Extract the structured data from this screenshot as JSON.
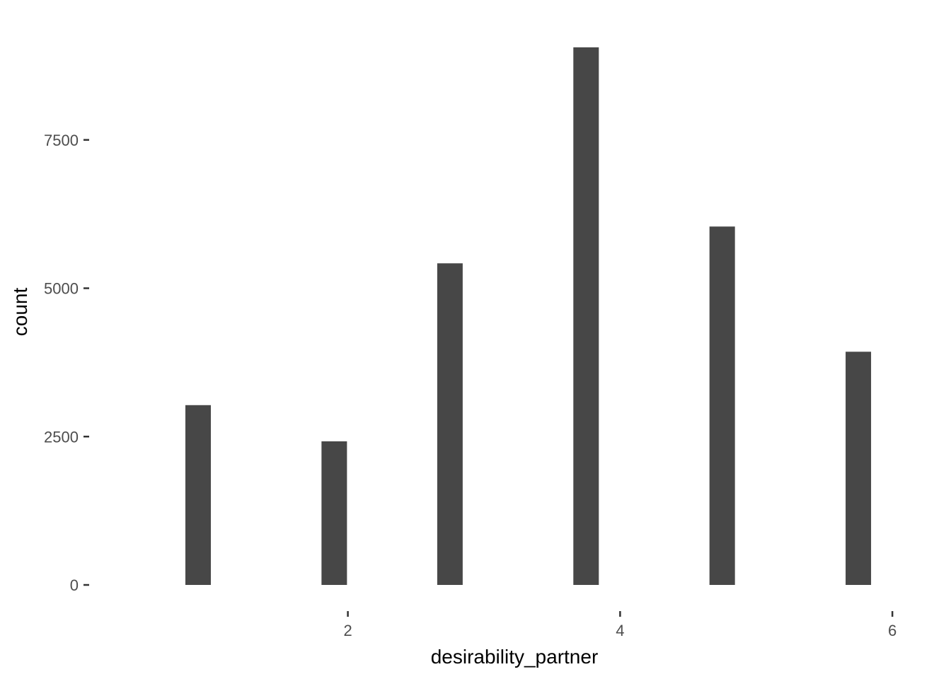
{
  "chart_data": {
    "type": "bar",
    "title": "",
    "xlabel": "desirability_partner",
    "ylabel": "count",
    "x": [
      0.9,
      1.9,
      2.75,
      3.75,
      4.75,
      5.75
    ],
    "values": [
      3030,
      2420,
      5420,
      9060,
      6040,
      3930
    ],
    "xlim": [
      0.11,
      6.15
    ],
    "ylim": [
      0,
      9500
    ],
    "x_ticks": [
      2,
      4,
      6
    ],
    "y_ticks": [
      0,
      2500,
      5000,
      7500
    ],
    "x_tick_labels": [
      "2",
      "4",
      "6"
    ],
    "y_tick_labels": [
      "0",
      "2500",
      "5000",
      "7500"
    ],
    "grid": false,
    "bar_color": "#474747"
  }
}
